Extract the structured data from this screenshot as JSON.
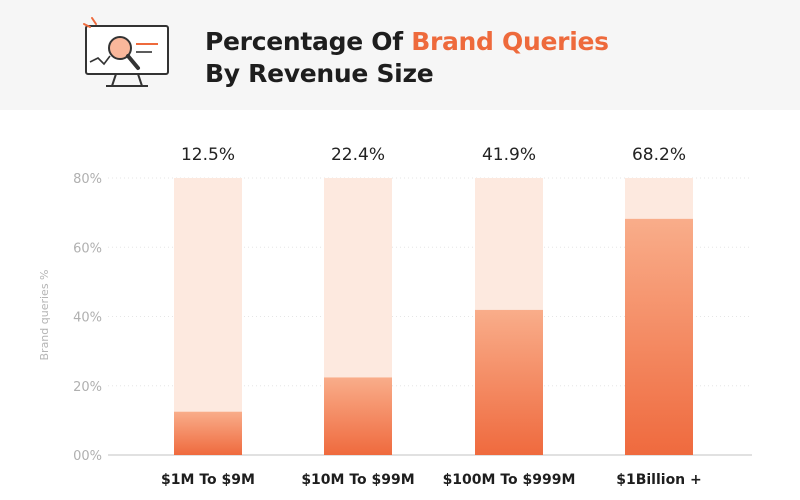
{
  "header": {
    "title_part1": "Percentage Of ",
    "title_accent": "Brand Queries",
    "title_line2": "By Revenue Size",
    "icon": "monitor-magnifier-icon"
  },
  "colors": {
    "accent": "#ee6a3c",
    "bar_top": "#f9ad8a",
    "bar_bottom": "#ef6a3e",
    "track": "#fde9df"
  },
  "chart_data": {
    "type": "bar",
    "title": "Percentage Of Brand Queries By Revenue Size",
    "xlabel": "",
    "ylabel": "Brand queries %",
    "ylim": [
      0,
      80
    ],
    "yticks": [
      0,
      20,
      40,
      60,
      80
    ],
    "ytick_labels": [
      "00%",
      "20%",
      "40%",
      "60%",
      "80%"
    ],
    "categories": [
      "$1M To $9M",
      "$10M To $99M",
      "$100M To $999M",
      "$1Billion +"
    ],
    "values": [
      12.5,
      22.4,
      41.9,
      68.2
    ],
    "value_labels": [
      "12.5%",
      "22.4%",
      "41.9%",
      "68.2%"
    ],
    "grid": true,
    "legend": "none"
  }
}
